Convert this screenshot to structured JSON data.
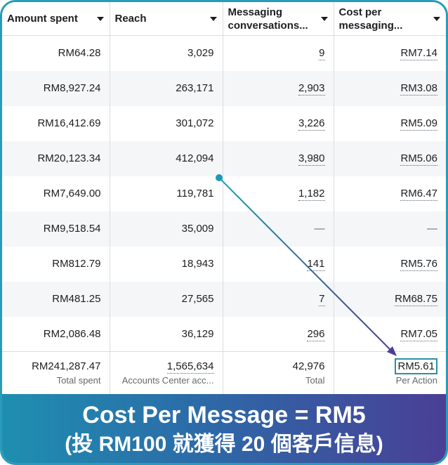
{
  "columns": [
    {
      "label": "Amount spent"
    },
    {
      "label": "Reach"
    },
    {
      "label": "Messaging conversations..."
    },
    {
      "label": "Cost per messaging..."
    }
  ],
  "rows": [
    {
      "spent": "RM64.28",
      "reach": "3,029",
      "conv": "9",
      "cost": "RM7.14"
    },
    {
      "spent": "RM8,927.24",
      "reach": "263,171",
      "conv": "2,903",
      "cost": "RM3.08"
    },
    {
      "spent": "RM16,412.69",
      "reach": "301,072",
      "conv": "3,226",
      "cost": "RM5.09"
    },
    {
      "spent": "RM20,123.34",
      "reach": "412,094",
      "conv": "3,980",
      "cost": "RM5.06"
    },
    {
      "spent": "RM7,649.00",
      "reach": "119,781",
      "conv": "1,182",
      "cost": "RM6.47"
    },
    {
      "spent": "RM9,518.54",
      "reach": "35,009",
      "conv": "—",
      "cost": "—"
    },
    {
      "spent": "RM812.79",
      "reach": "18,943",
      "conv": "141",
      "cost": "RM5.76"
    },
    {
      "spent": "RM481.25",
      "reach": "27,565",
      "conv": "7",
      "cost": "RM68.75"
    },
    {
      "spent": "RM2,086.48",
      "reach": "36,129",
      "conv": "296",
      "cost": "RM7.05"
    }
  ],
  "totals": {
    "spent": "RM241,287.47",
    "spent_label": "Total spent",
    "reach": "1,565,634",
    "reach_label": "Accounts Center acc...",
    "conv": "42,976",
    "conv_label": "Total",
    "cost": "RM5.61",
    "cost_label": "Per Action"
  },
  "banner": {
    "line1": "Cost Per Message = RM5",
    "line2": "(投 RM100 就獲得 20 個客戶信息)"
  },
  "colors": {
    "accent_teal": "#2a8fa6",
    "accent_purple": "#4a3f96",
    "caret_icon": "caret-down-icon"
  }
}
